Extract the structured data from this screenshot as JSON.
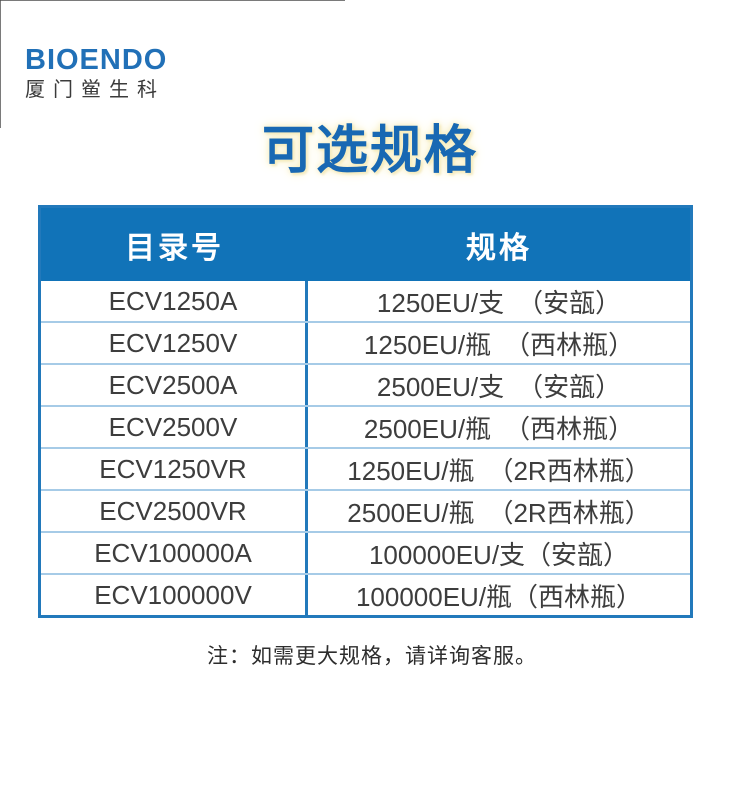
{
  "logo": {
    "brand": "BIOENDO",
    "company": "厦门鲎生科"
  },
  "title": "可选规格",
  "table": {
    "headers": [
      "目录号",
      "规格"
    ],
    "rows": [
      {
        "catalog": "ECV1250A",
        "spec": "1250EU/支　（安瓿）"
      },
      {
        "catalog": "ECV1250V",
        "spec": "1250EU/瓶　（西林瓶）"
      },
      {
        "catalog": "ECV2500A",
        "spec": "2500EU/支　（安瓿）"
      },
      {
        "catalog": "ECV2500V",
        "spec": "2500EU/瓶　（西林瓶）"
      },
      {
        "catalog": "ECV1250VR",
        "spec": "1250EU/瓶　（2R西林瓶）"
      },
      {
        "catalog": "ECV2500VR",
        "spec": "2500EU/瓶　（2R西林瓶）"
      },
      {
        "catalog": "ECV100000A",
        "spec": "100000EU/支（安瓿）"
      },
      {
        "catalog": "ECV100000V",
        "spec": "100000EU/瓶（西林瓶）"
      }
    ]
  },
  "note": "注：如需更大规格，请详询客服。",
  "colors": {
    "header_blue": "#1173b8",
    "border_blue": "#2279bb",
    "row_divider_blue": "#a6cbe7",
    "title_blue": "#1868b3",
    "title_glow_yellow": "#f7edbb",
    "logo_blue": "#2170b7",
    "text_dark": "#3d3d3d"
  }
}
